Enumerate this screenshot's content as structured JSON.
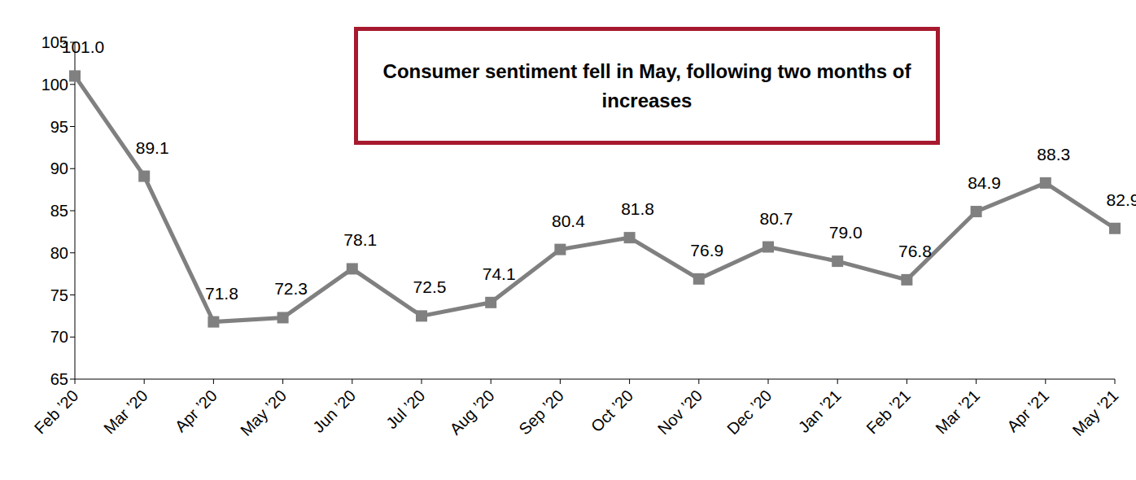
{
  "chart_data": {
    "type": "line",
    "annotation": "Consumer sentiment fell in May, following two months of increases",
    "categories": [
      "Feb ’20",
      "Mar ’20",
      "Apr ’20",
      "May ’20",
      "Jun ’20",
      "Jul ’20",
      "Aug ’20",
      "Sep ’20",
      "Oct ’20",
      "Nov ’20",
      "Dec ’20",
      "Jan ’21",
      "Feb ’21",
      "Mar ’21",
      "Apr ’21",
      "May ’21"
    ],
    "values": [
      101.0,
      89.1,
      71.8,
      72.3,
      78.1,
      72.5,
      74.1,
      80.4,
      81.8,
      76.9,
      80.7,
      79.0,
      76.8,
      84.9,
      88.3,
      82.9
    ],
    "value_labels": [
      "101.0",
      "89.1",
      "71.8",
      "72.3",
      "78.1",
      "72.5",
      "74.1",
      "80.4",
      "81.8",
      "76.9",
      "80.7",
      "79.0",
      "76.8",
      "84.9",
      "88.3",
      "82.9"
    ],
    "color": "#808080",
    "marker": "square",
    "ylim": [
      65,
      105
    ],
    "yticks": [
      65,
      70,
      75,
      80,
      85,
      90,
      95,
      100,
      105
    ],
    "grid": false,
    "data_labels": true
  }
}
